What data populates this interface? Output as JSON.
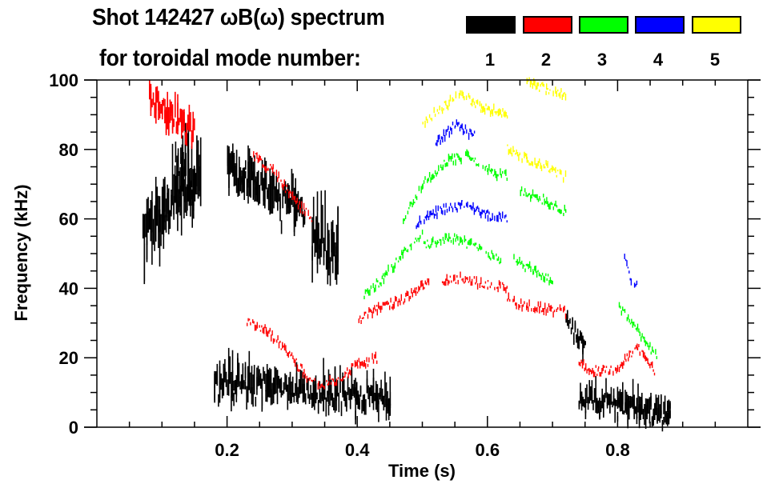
{
  "header": {
    "title_line1": "Shot 142427 ωB(ω) spectrum",
    "title_line2": "for toroidal mode number:"
  },
  "legend": [
    {
      "label": "1",
      "color": "#000000"
    },
    {
      "label": "2",
      "color": "#ff0000"
    },
    {
      "label": "3",
      "color": "#00ff00"
    },
    {
      "label": "4",
      "color": "#0000ff"
    },
    {
      "label": "5",
      "color": "#ffff00"
    }
  ],
  "chart_data": {
    "type": "heatmap",
    "title": "Shot 142427 ωB(ω) spectrum for toroidal mode number:",
    "xlabel": "Time (s)",
    "ylabel": "Frequency (kHz)",
    "xlim": [
      0.0,
      1.0
    ],
    "ylim": [
      0,
      100
    ],
    "xticks": [
      {
        "value": 0.2,
        "label": "0.2"
      },
      {
        "value": 0.4,
        "label": "0.4"
      },
      {
        "value": 0.6,
        "label": "0.6"
      },
      {
        "value": 0.8,
        "label": "0.8"
      }
    ],
    "x_minor_step": 0.05,
    "yticks": [
      {
        "value": 0,
        "label": "0"
      },
      {
        "value": 20,
        "label": "20"
      },
      {
        "value": 40,
        "label": "40"
      },
      {
        "value": 60,
        "label": "60"
      },
      {
        "value": 80,
        "label": "80"
      },
      {
        "value": 100,
        "label": "100"
      }
    ],
    "y_minor_step": 5,
    "grid": false,
    "legend_position": "top-right",
    "series": [
      {
        "name": "n=1",
        "mode_number": 1,
        "color": "#000000",
        "regions": [
          {
            "t": [
              0.07,
              0.16
            ],
            "f_center": [
              57,
              72
            ],
            "f_halfwidth": 12
          },
          {
            "t": [
              0.12,
              0.15
            ],
            "f_center": [
              78,
              65
            ],
            "f_halfwidth": 10
          },
          {
            "t": [
              0.2,
              0.32
            ],
            "f_center": [
              76,
              62
            ],
            "f_halfwidth": 8
          },
          {
            "t": [
              0.33,
              0.37
            ],
            "f_center": [
              55,
              50
            ],
            "f_halfwidth": 12
          },
          {
            "t": [
              0.18,
              0.45
            ],
            "f_center": [
              14,
              8
            ],
            "f_halfwidth": 6
          },
          {
            "t": [
              0.74,
              0.88
            ],
            "f_center": [
              9,
              4
            ],
            "f_halfwidth": 5
          },
          {
            "t": [
              0.72,
              0.75
            ],
            "f_center": [
              32,
              22
            ],
            "f_halfwidth": 3
          }
        ],
        "ridges": []
      },
      {
        "name": "n=2",
        "mode_number": 2,
        "color": "#ff0000",
        "regions": [
          {
            "t": [
              0.08,
              0.15
            ],
            "f_center": [
              95,
              85
            ],
            "f_halfwidth": 6
          }
        ],
        "ridges": [
          {
            "t": [
              0.24,
              0.27,
              0.3,
              0.33
            ],
            "f": [
              78,
              74,
              66,
              60
            ]
          },
          {
            "t": [
              0.23,
              0.26,
              0.29,
              0.32,
              0.34,
              0.37,
              0.4,
              0.43
            ],
            "f": [
              30,
              28,
              22,
              15,
              12,
              14,
              18,
              20
            ]
          },
          {
            "t": [
              0.4,
              0.43,
              0.46,
              0.49,
              0.51
            ],
            "f": [
              31,
              34,
              36,
              39,
              42
            ]
          },
          {
            "t": [
              0.53,
              0.56,
              0.6,
              0.63
            ],
            "f": [
              42,
              43,
              41,
              40
            ]
          },
          {
            "t": [
              0.63,
              0.66,
              0.69,
              0.72
            ],
            "f": [
              37,
              35,
              34,
              33
            ]
          },
          {
            "t": [
              0.74,
              0.77,
              0.8,
              0.83,
              0.86
            ],
            "f": [
              18,
              16,
              17,
              23,
              15
            ]
          }
        ]
      },
      {
        "name": "n=3",
        "mode_number": 3,
        "color": "#00ff00",
        "regions": [],
        "ridges": [
          {
            "t": [
              0.41,
              0.44,
              0.47,
              0.5
            ],
            "f": [
              38,
              43,
              50,
              56
            ]
          },
          {
            "t": [
              0.5,
              0.54,
              0.58,
              0.62
            ],
            "f": [
              52,
              55,
              52,
              48
            ]
          },
          {
            "t": [
              0.47,
              0.5,
              0.54,
              0.57,
              0.6,
              0.63
            ],
            "f": [
              60,
              70,
              77,
              78,
              74,
              72
            ]
          },
          {
            "t": [
              0.65,
              0.68,
              0.72
            ],
            "f": [
              68,
              66,
              62
            ]
          },
          {
            "t": [
              0.64,
              0.67,
              0.7
            ],
            "f": [
              48,
              45,
              42
            ]
          },
          {
            "t": [
              0.8,
              0.83,
              0.86
            ],
            "f": [
              35,
              28,
              20
            ]
          }
        ]
      },
      {
        "name": "n=4",
        "mode_number": 4,
        "color": "#0000ff",
        "regions": [],
        "ridges": [
          {
            "t": [
              0.49,
              0.52,
              0.56,
              0.6,
              0.63
            ],
            "f": [
              58,
              62,
              64,
              61,
              60
            ]
          },
          {
            "t": [
              0.52,
              0.55,
              0.58
            ],
            "f": [
              82,
              87,
              84
            ]
          },
          {
            "t": [
              0.81,
              0.82,
              0.83
            ],
            "f": [
              48,
              43,
              40
            ]
          }
        ]
      },
      {
        "name": "n=5",
        "mode_number": 5,
        "color": "#ffff00",
        "regions": [],
        "ridges": [
          {
            "t": [
              0.5,
              0.53,
              0.56,
              0.59,
              0.63
            ],
            "f": [
              88,
              92,
              96,
              92,
              90
            ]
          },
          {
            "t": [
              0.63,
              0.66,
              0.69,
              0.72
            ],
            "f": [
              80,
              77,
              75,
              72
            ]
          },
          {
            "t": [
              0.66,
              0.69,
              0.72
            ],
            "f": [
              100,
              97,
              96
            ]
          }
        ]
      }
    ]
  }
}
